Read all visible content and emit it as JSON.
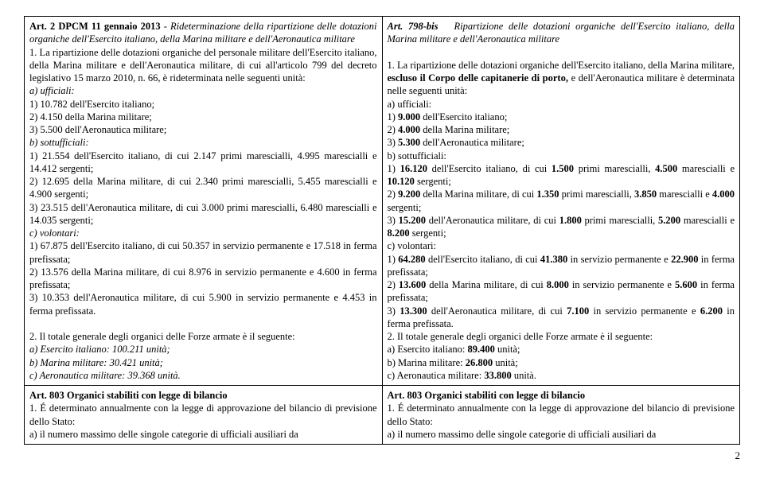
{
  "left": {
    "title_prefix": "Art. 2 DPCM 11 gennaio 2013",
    "title_rest": " - Rideterminazione della ripartizione delle dotazioni organiche dell'Esercito italiano, della Marina militare e dell'Aeronautica militare",
    "p1_a": "1. La ripartizione delle dotazioni organiche del personale militare dell'Esercito italiano, della Marina militare e dell'Aeronautica militare, di cui all'articolo 799 del decreto legislativo 15 marzo 2010, n. 66, è rideterminata nelle seguenti unità:",
    "a_uff": "a) ufficiali:",
    "a1": "1) 10.782 dell'Esercito italiano;",
    "a2": "2)  4.150 della Marina militare;",
    "a3": "3)  5.500 dell'Aeronautica militare;",
    "b_sot": "b) sottufficiali:",
    "b1": "1) 21.554 dell'Esercito italiano, di cui 2.147 primi marescialli, 4.995 marescialli e 14.412 sergenti;",
    "b2": "2) 12.695 della Marina militare, di cui  2.340 primi marescialli, 5.455 marescialli  e  4.900 sergenti;",
    "b3": "3) 23.515 dell'Aeronautica militare, di cui 3.000 primi marescialli, 6.480 marescialli e 14.035 sergenti;",
    "c_vol": "c) volontari:",
    "c1": "1) 67.875 dell'Esercito italiano, di cui 50.357 in servizio permanente e 17.518 in ferma prefissata;",
    "c2": "2) 13.576  della Marina militare, di cui 8.976  in servizio permanente e 4.600 in ferma prefissata;",
    "c3": "3) 10.353 dell'Aeronautica militare, di cui 5.900  in servizio permanente e 4.453 in ferma prefissata.",
    "tot_intro": "2. Il totale generale degli organici delle Forze armate è il seguente:",
    "tot_a": "a) Esercito italiano: 100.211 unità;",
    "tot_b": "b) Marina militare: 30.421 unità;",
    "tot_c": "c) Aeronautica militare: 39.368  unità.",
    "art803_title": "Art. 803 Organici stabiliti con legge di bilancio",
    "art803_p1": "1. É determinato annualmente con la legge di approvazione del bilancio di previsione dello Stato:",
    "art803_a": "a) il numero massimo delle singole categorie di ufficiali ausiliari da"
  },
  "right": {
    "title_prefix": "Art. 798-bis",
    "title_rest": "Ripartizione delle dotazioni organiche dell'Esercito italiano, della Marina militare e dell'Aeronautica militare",
    "p1_a": "1. La ripartizione delle dotazioni organiche dell'Esercito italiano, della Marina militare, ",
    "p1_b": "escluso il Corpo delle capitanerie di porto,",
    "p1_c": " e dell'Aeronautica militare è determinata nelle seguenti unità:",
    "a_uff": "a) ufficiali:",
    "a1_a": "1) ",
    "a1_b": "9.000",
    "a1_c": " dell'Esercito italiano;",
    "a2_a": "2) ",
    "a2_b": "4.000",
    "a2_c": " della Marina militare;",
    "a3_a": "3) ",
    "a3_b": "5.300",
    "a3_c": " dell'Aeronautica militare;",
    "b_sot": "b) sottufficiali:",
    "b1_a": "1) ",
    "b1_b": "16.120",
    "b1_c": " dell'Esercito italiano, di cui ",
    "b1_d": "1.500",
    "b1_e": " primi marescialli, ",
    "b1_f": "4.500",
    "b1_g": " marescialli e ",
    "b1_h": "10.120",
    "b1_i": " sergenti;",
    "b2_a": "2) ",
    "b2_b": "9.200",
    "b2_c": " della Marina militare, di cui ",
    "b2_d": "1.350",
    "b2_e": " primi marescialli, ",
    "b2_f": "3.850",
    "b2_g": " marescialli  e  ",
    "b2_h": "4.000",
    "b2_i": " sergenti;",
    "b3_a": "3) ",
    "b3_b": "15.200",
    "b3_c": " dell'Aeronautica militare, di cui ",
    "b3_d": "1.800",
    "b3_e": " primi marescialli, ",
    "b3_f": "5.200",
    "b3_g": " marescialli e ",
    "b3_h": "8.200",
    "b3_i": " sergenti;",
    "c_vol": "c) volontari:",
    "c1_a": "1) ",
    "c1_b": "64.280",
    "c1_c": " dell'Esercito italiano, di cui ",
    "c1_d": "41.380",
    "c1_e": " in servizio permanente e ",
    "c1_f": "22.900",
    "c1_g": " in ferma prefissata;",
    "c2_a": "2) ",
    "c2_b": "13.600",
    "c2_c": "  della Marina militare, di cui ",
    "c2_d": "8.000",
    "c2_e": "  in servizio permanente e ",
    "c2_f": "5.600",
    "c2_g": " in ferma prefissata;",
    "c3_a": "3) ",
    "c3_b": "13.300",
    "c3_c": " dell'Aeronautica militare, di cui ",
    "c3_d": "7.100",
    "c3_e": "  in servizio permanente e ",
    "c3_f": "6.200",
    "c3_g": " in ferma prefissata.",
    "tot_intro": "2.  Il totale generale degli organici delle Forze armate è il seguente:",
    "tot_a_a": "a) Esercito italiano: ",
    "tot_a_b": "89.400",
    "tot_a_c": " unità;",
    "tot_b_a": "b) Marina militare: ",
    "tot_b_b": "26.800",
    "tot_b_c": " unità;",
    "tot_c_a": "c) Aeronautica militare: ",
    "tot_c_b": "33.800",
    "tot_c_c": " unità.",
    "art803_title": "Art. 803 Organici stabiliti con legge di bilancio",
    "art803_p1": "1. É determinato annualmente con la legge di approvazione del bilancio di previsione dello Stato:",
    "art803_a": "a)  il numero massimo delle singole categorie di ufficiali ausiliari da"
  },
  "page": "2"
}
